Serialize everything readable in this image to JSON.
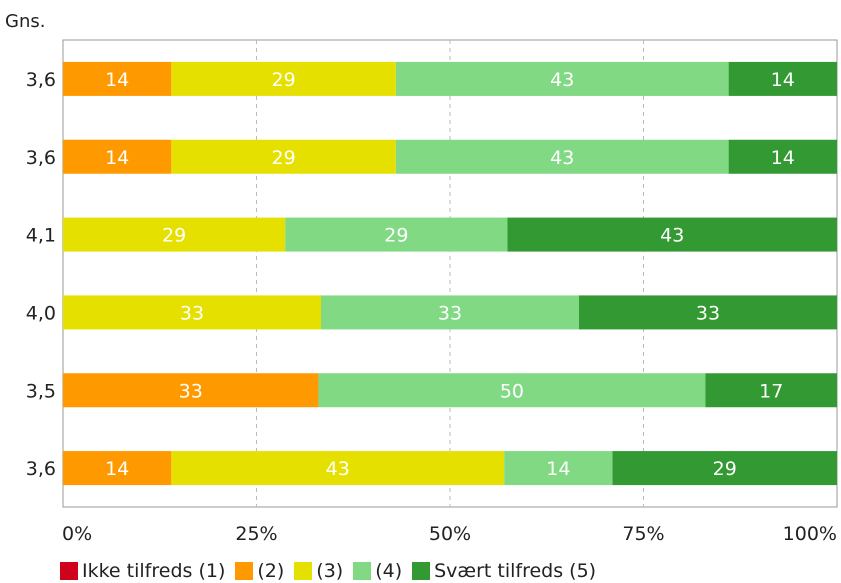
{
  "chart_data": {
    "type": "bar",
    "orientation": "horizontal",
    "stacked": true,
    "percent": true,
    "y_header": "Gns.",
    "categories": [
      "3,6",
      "3,6",
      "4,1",
      "4,0",
      "3,5",
      "3,6"
    ],
    "series": [
      {
        "name": "Ikke tilfreds (1)",
        "color": "#d0021b",
        "values": [
          0,
          0,
          0,
          0,
          0,
          0
        ]
      },
      {
        "name": "(2)",
        "color": "#ff9900",
        "values": [
          14,
          14,
          0,
          0,
          33,
          14
        ]
      },
      {
        "name": "(3)",
        "color": "#e6e000",
        "values": [
          29,
          29,
          29,
          33,
          0,
          43
        ]
      },
      {
        "name": "(4)",
        "color": "#82d984",
        "values": [
          43,
          43,
          29,
          33,
          50,
          14
        ]
      },
      {
        "name": "Svært tilfreds (5)",
        "color": "#339933",
        "values": [
          14,
          14,
          43,
          33,
          17,
          29
        ]
      }
    ],
    "x_ticks": [
      "0%",
      "25%",
      "50%",
      "75%",
      "100%"
    ],
    "xlim": [
      0,
      100
    ],
    "grid": true,
    "legend_position": "bottom"
  }
}
